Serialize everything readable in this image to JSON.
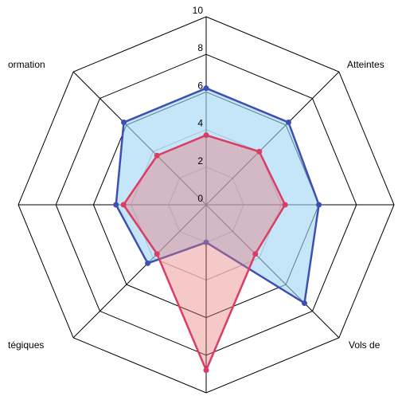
{
  "chart_data": {
    "type": "radar",
    "axes": [
      "",
      "Atteintes",
      "",
      "Vols de",
      "",
      "tégiques",
      "",
      "ormation"
    ],
    "ticks": [
      "0",
      "2",
      "4",
      "6",
      "8",
      "10"
    ],
    "range": [
      0,
      10
    ],
    "series": [
      {
        "values": [
          6.2,
          6.2,
          6.0,
          7.4,
          2.0,
          4.4,
          4.8,
          6.2
        ],
        "color": "#3c50b4",
        "fill": "#9fd3f5"
      },
      {
        "values": [
          3.7,
          4.0,
          4.2,
          3.7,
          8.8,
          3.7,
          4.4,
          3.7
        ],
        "color": "#dc3c64",
        "fill": "#e87878"
      }
    ]
  }
}
